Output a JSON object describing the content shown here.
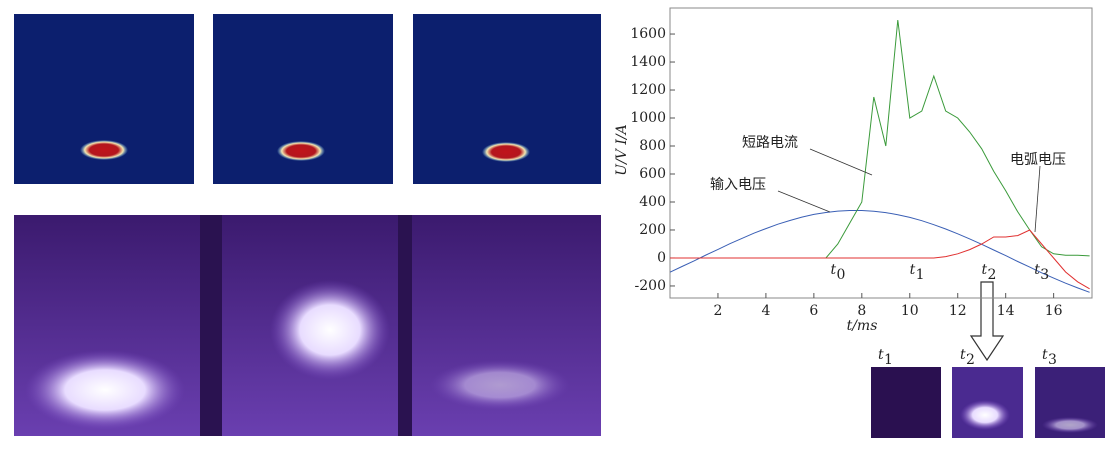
{
  "chart_data": {
    "type": "line",
    "x": [
      0,
      0.5,
      1,
      1.5,
      2,
      2.5,
      3,
      3.5,
      4,
      4.5,
      5,
      5.5,
      6,
      6.5,
      7,
      7.5,
      8,
      8.5,
      9,
      9.5,
      10,
      10.5,
      11,
      11.5,
      12,
      12.5,
      13,
      13.5,
      14,
      14.5,
      15,
      15.5,
      16,
      16.5,
      17,
      17.5
    ],
    "series": [
      {
        "name": "输入电压",
        "color": "#3a5fb5",
        "values": [
          -102,
          -61,
          -21,
          21,
          61,
          102,
          140,
          177,
          210,
          241,
          268,
          292,
          311,
          325,
          335,
          339,
          339,
          334,
          324,
          309,
          290,
          266,
          238,
          207,
          173,
          136,
          98,
          57,
          17,
          -25,
          -65,
          -106,
          -144,
          -180,
          -214,
          -245
        ]
      },
      {
        "name": "短路电流",
        "color": "#3a9a3a",
        "values": [
          0,
          0,
          0,
          0,
          0,
          0,
          0,
          0,
          0,
          0,
          0,
          0,
          0,
          0,
          100,
          250,
          400,
          1150,
          800,
          1700,
          1000,
          1050,
          1300,
          1050,
          1000,
          900,
          780,
          620,
          480,
          330,
          200,
          80,
          30,
          20,
          20,
          15
        ]
      },
      {
        "name": "电弧电压",
        "color": "#e03030",
        "values": [
          0,
          0,
          0,
          0,
          0,
          0,
          0,
          0,
          0,
          0,
          0,
          0,
          0,
          0,
          0,
          0,
          0,
          0,
          0,
          0,
          0,
          0,
          0,
          10,
          30,
          60,
          100,
          150,
          150,
          160,
          200,
          100,
          0,
          -100,
          -170,
          -220
        ]
      }
    ],
    "xlim": [
      0,
      17.6
    ],
    "xticks": [
      2,
      4,
      6,
      8,
      10,
      12,
      14,
      16
    ],
    "ylim": [
      -286,
      1786
    ],
    "yticks": [
      -200,
      0,
      200,
      400,
      600,
      800,
      1000,
      1200,
      1400,
      1600
    ],
    "xlabel": "t/ms",
    "ylabel": "U/V   I/A",
    "annotations": [
      {
        "text": "t",
        "sub": "0",
        "x": 6.9
      },
      {
        "text": "t",
        "sub": "1",
        "x": 10.2
      },
      {
        "text": "t",
        "sub": "2",
        "x": 13.2
      },
      {
        "text": "t",
        "sub": "3",
        "x": 15.4
      }
    ],
    "thumbnails": [
      {
        "text": "t",
        "sub": "1"
      },
      {
        "text": "t",
        "sub": "2"
      },
      {
        "text": "t",
        "sub": "3"
      }
    ]
  }
}
